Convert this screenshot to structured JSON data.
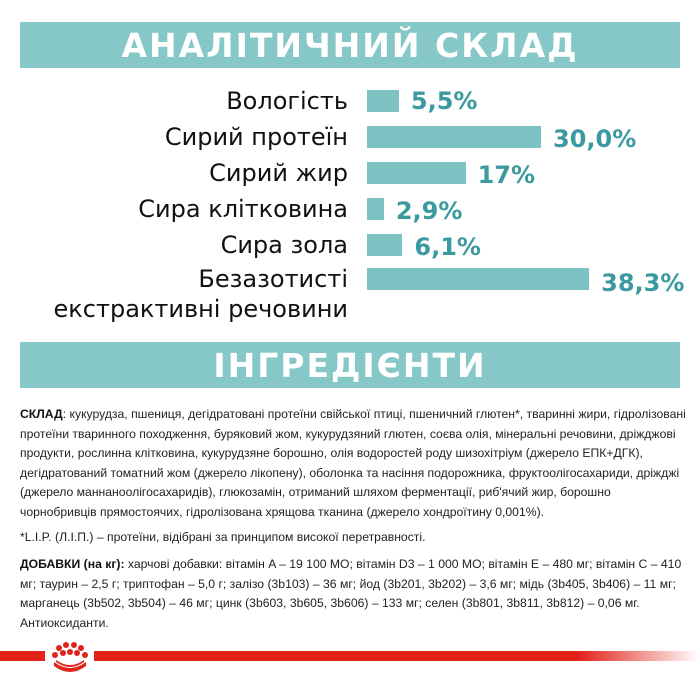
{
  "analysis": {
    "title": "АНАЛІТИЧНИЙ СКЛАД",
    "rows": [
      {
        "label": "Вологість",
        "value": "5,5%",
        "percent": 5.5
      },
      {
        "label": "Сирий протеїн",
        "value": "30,0%",
        "percent": 30.0
      },
      {
        "label": "Сирий жир",
        "value": "17%",
        "percent": 17
      },
      {
        "label": "Сира клітковина",
        "value": "2,9%",
        "percent": 2.9
      },
      {
        "label": "Сира зола",
        "value": "6,1%",
        "percent": 6.1
      },
      {
        "label": "Безазотисті",
        "label2": "екстрактивні речовини",
        "value": "38,3%",
        "percent": 38.3
      }
    ],
    "bar_color": "#7dc3c3",
    "value_color": "#3a9a9f"
  },
  "ingredients": {
    "title": "ІНГРЕДІЄНТИ",
    "composition_label": "СКЛАД",
    "composition_text": ": кукурудза, пшениця, дегідратовані протеїни свійської птиці, пшеничний глютен*, тваринні жири, гідролізовані протеїни тваринного походження, буряковий жом, кукурудзяний глютен, соєва олія, мінеральні речовини, дріжджові продукти, рослинна клітковина, кукурудзяне борошно, олія водоростей роду шизохітріум (джерело ЕПК+ДГК), дегідратований томатний жом (джерело лікопену), оболонка та насіння подорожника, фруктоолігосахариди, дріжджі (джерело маннаноолігосахаридів), глюкозамін, отриманий шляхом ферментації, риб'ячий жир, борошно чорнобривців прямостоячих, гідролізована хрящова тканина (джерело хондроїтину 0,001%).",
    "footnote": "*L.I.P. (Л.І.П.) – протеїни, відібрані за принципом високої перетравності.",
    "additives_label": "ДОБАВКИ (на кг):",
    "additives_text": " харчові добавки: вітамін A – 19 100 МО; вітамін D3 – 1 000 МО; вітамін E – 480 мг; вітамін C – 410 мг; таурин – 2,5 г; триптофан – 5,0 г; залізо (3b103) – 36 мг; йод (3b201, 3b202) – 3,6 мг; мідь (3b405, 3b406) – 11 мг; марганець (3b502, 3b504) – 46 мг; цинк (3b603, 3b605, 3b606) – 133 мг; селен (3b801, 3b811, 3b812) – 0,06 мг. Антиоксиданти."
  },
  "footer": {
    "logo": "royal-canin-crown-icon",
    "accent": "#e2231a"
  }
}
